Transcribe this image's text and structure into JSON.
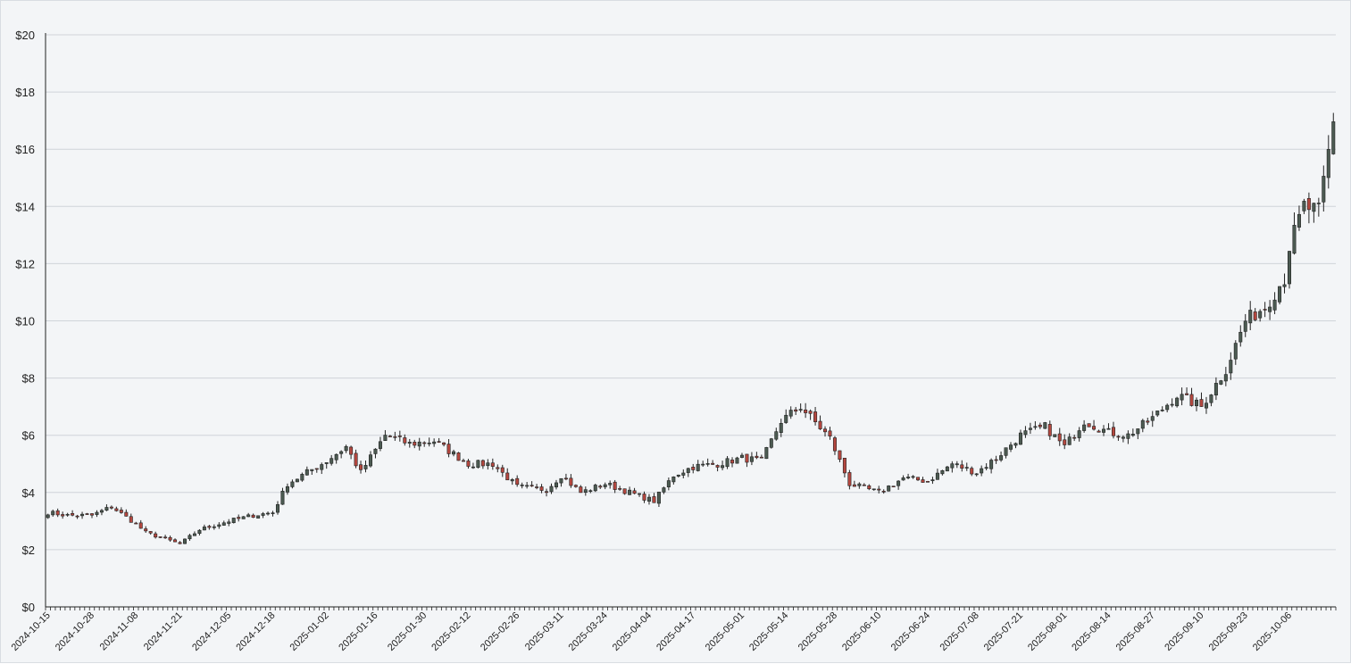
{
  "chart_data": {
    "type": "candlestick",
    "title": "",
    "xlabel": "",
    "ylabel": "",
    "ylim": [
      0,
      20
    ],
    "y_ticks": [
      "$0",
      "$2",
      "$4",
      "$6",
      "$8",
      "$10",
      "$12",
      "$14",
      "$16",
      "$18",
      "$20"
    ],
    "x_ticks": [
      "2024-10-15",
      "2024-10-28",
      "2024-11-08",
      "2024-11-21",
      "2024-12-05",
      "2024-12-18",
      "2025-01-02",
      "2025-01-16",
      "2025-01-30",
      "2025-02-12",
      "2025-02-26",
      "2025-03-11",
      "2025-03-24",
      "2025-04-04",
      "2025-04-17",
      "2025-05-01",
      "2025-05-14",
      "2025-05-28",
      "2025-06-10",
      "2025-06-24",
      "2025-07-08",
      "2025-07-21",
      "2025-08-01",
      "2025-08-14",
      "2025-08-27",
      "2025-09-10",
      "2025-09-23",
      "2025-10-06"
    ],
    "grid": true,
    "colors": {
      "up": "#4c5b52",
      "down": "#b5473f",
      "grid": "#d0d4d9",
      "axis": "#222222"
    },
    "close_anchors": [
      [
        "2024-10-15",
        3.3
      ],
      [
        "2024-10-21",
        3.2
      ],
      [
        "2024-10-28",
        3.2
      ],
      [
        "2024-11-01",
        3.5
      ],
      [
        "2024-11-08",
        2.9
      ],
      [
        "2024-11-12",
        2.6
      ],
      [
        "2024-11-21",
        2.2
      ],
      [
        "2024-11-27",
        2.7
      ],
      [
        "2024-12-05",
        3.0
      ],
      [
        "2024-12-12",
        3.2
      ],
      [
        "2024-12-18",
        3.3
      ],
      [
        "2024-12-23",
        4.3
      ],
      [
        "2025-01-02",
        5.1
      ],
      [
        "2025-01-08",
        5.6
      ],
      [
        "2025-01-13",
        4.7
      ],
      [
        "2025-01-20",
        6.0
      ],
      [
        "2025-01-27",
        5.7
      ],
      [
        "2025-02-03",
        5.8
      ],
      [
        "2025-02-12",
        5.0
      ],
      [
        "2025-02-19",
        5.0
      ],
      [
        "2025-02-26",
        4.2
      ],
      [
        "2025-03-06",
        4.1
      ],
      [
        "2025-03-11",
        4.6
      ],
      [
        "2025-03-17",
        4.0
      ],
      [
        "2025-03-24",
        4.3
      ],
      [
        "2025-03-31",
        4.0
      ],
      [
        "2025-04-07",
        3.7
      ],
      [
        "2025-04-11",
        4.6
      ],
      [
        "2025-04-17",
        4.9
      ],
      [
        "2025-04-24",
        5.0
      ],
      [
        "2025-05-01",
        5.2
      ],
      [
        "2025-05-07",
        5.1
      ],
      [
        "2025-05-13",
        6.5
      ],
      [
        "2025-05-19",
        7.0
      ],
      [
        "2025-05-27",
        5.9
      ],
      [
        "2025-06-02",
        4.3
      ],
      [
        "2025-06-10",
        4.0
      ],
      [
        "2025-06-17",
        4.5
      ],
      [
        "2025-06-24",
        4.4
      ],
      [
        "2025-07-01",
        5.0
      ],
      [
        "2025-07-08",
        4.7
      ],
      [
        "2025-07-14",
        5.2
      ],
      [
        "2025-07-21",
        6.0
      ],
      [
        "2025-07-28",
        6.3
      ],
      [
        "2025-08-01",
        5.6
      ],
      [
        "2025-08-07",
        6.5
      ],
      [
        "2025-08-14",
        6.1
      ],
      [
        "2025-08-20",
        6.0
      ],
      [
        "2025-08-27",
        6.6
      ],
      [
        "2025-09-03",
        7.4
      ],
      [
        "2025-09-10",
        7.0
      ],
      [
        "2025-09-17",
        8.3
      ],
      [
        "2025-09-23",
        10.0
      ],
      [
        "2025-09-29",
        10.5
      ],
      [
        "2025-10-03",
        11.5
      ],
      [
        "2025-10-06",
        12.6
      ],
      [
        "2025-10-09",
        14.0
      ],
      [
        "2025-10-14",
        13.8
      ],
      [
        "2025-10-17",
        16.9
      ]
    ]
  }
}
